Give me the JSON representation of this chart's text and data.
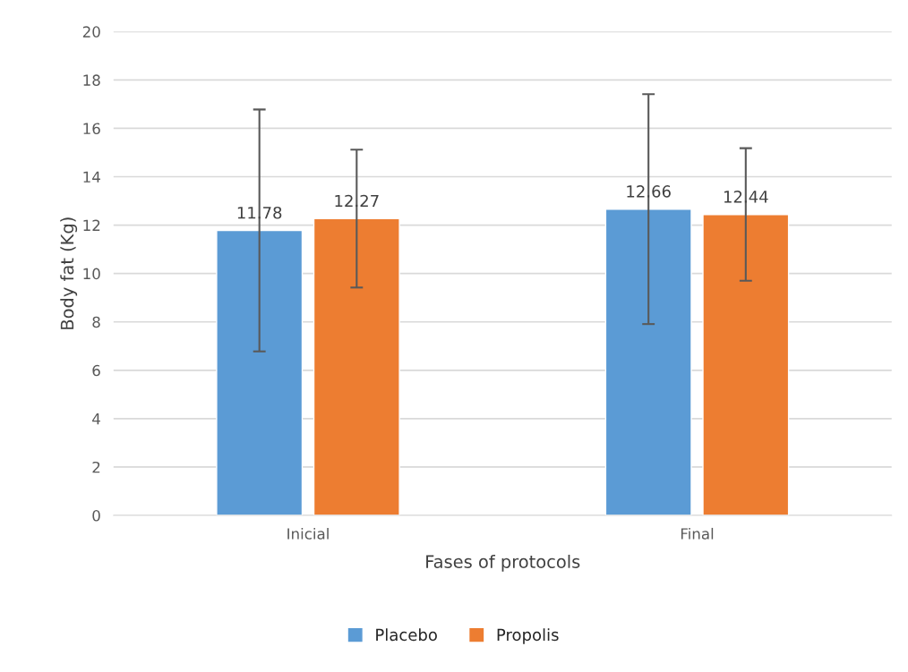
{
  "chart_data": {
    "type": "bar",
    "xlabel": "Fases of protocols",
    "ylabel": "Body fat (Kg)",
    "categories": [
      "Inicial",
      "Final"
    ],
    "series": [
      {
        "name": "Placebo",
        "color": "#5b9bd5",
        "values": [
          11.78,
          12.66
        ],
        "errors": [
          5.0,
          4.75
        ]
      },
      {
        "name": "Propolis",
        "color": "#ed7d31",
        "values": [
          12.27,
          12.44
        ],
        "errors": [
          2.85,
          2.74
        ]
      }
    ],
    "ylim": [
      0,
      20
    ],
    "yticks": [
      0,
      2,
      4,
      6,
      8,
      10,
      12,
      14,
      16,
      18,
      20
    ],
    "grid": "y",
    "legend": "bottom",
    "data_labels": true
  }
}
